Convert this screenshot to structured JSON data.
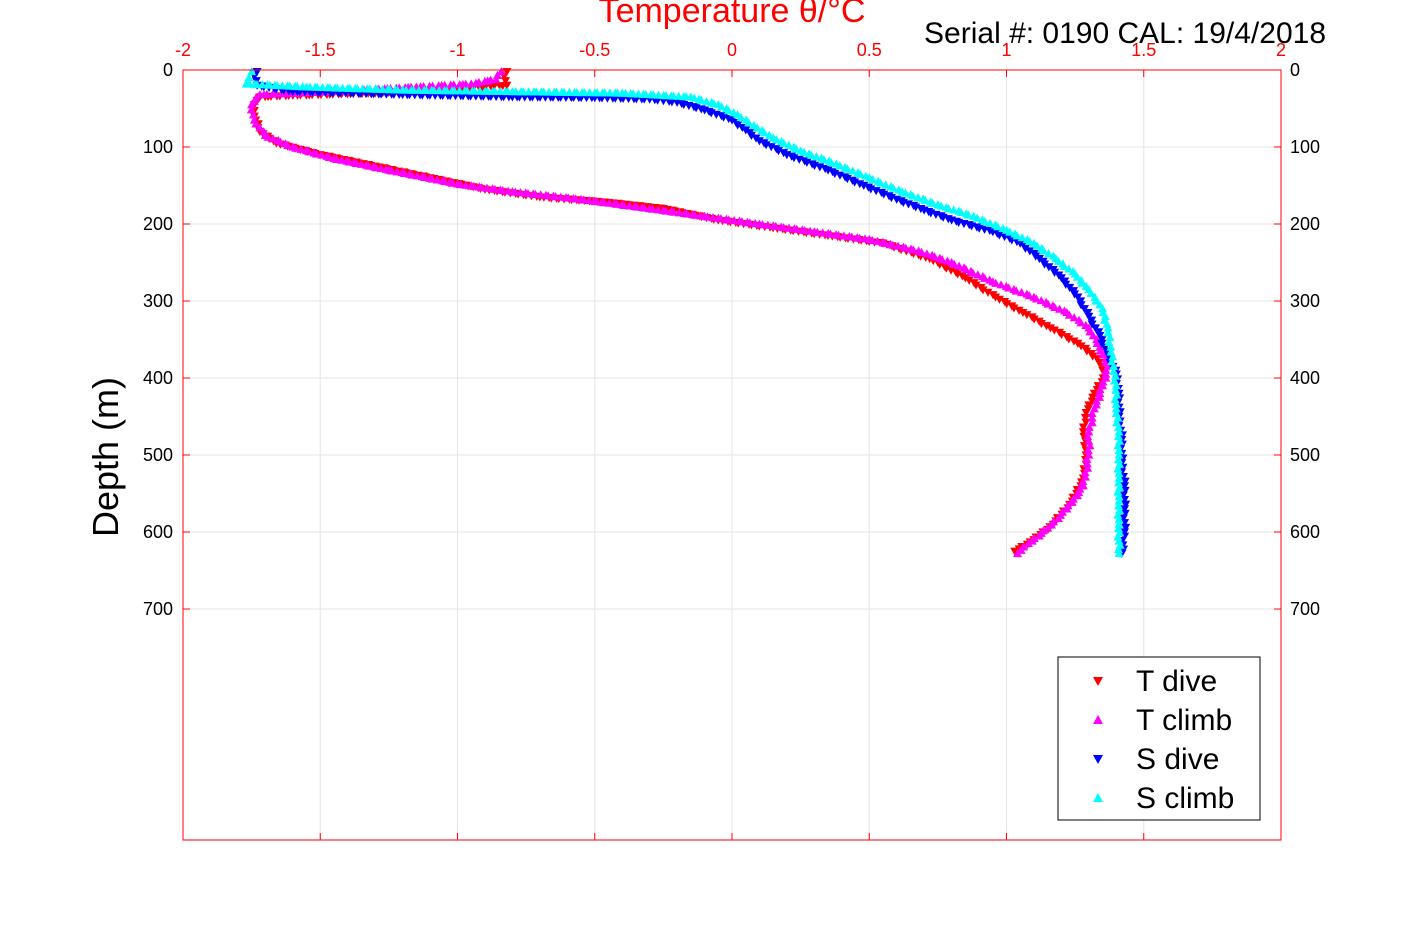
{
  "chart_data": {
    "type": "scatter",
    "title": "Temperature θ/°C",
    "annotation": "Serial #: 0190  CAL: 19/4/2018",
    "ylabel": "Depth (m)",
    "xlim": [
      -2,
      2
    ],
    "ylim": [
      1000,
      0
    ],
    "x_ticks": [
      -2,
      -1.5,
      -1,
      -0.5,
      0,
      0.5,
      1,
      1.5,
      2
    ],
    "x_tick_labels": [
      "-2",
      "-1.5",
      "-1",
      "-0.5",
      "0",
      "0.5",
      "1",
      "1.5",
      "2"
    ],
    "y_ticks": [
      0,
      100,
      200,
      300,
      400,
      500,
      600,
      700
    ],
    "y_tick_labels": [
      "0",
      "100",
      "200",
      "300",
      "400",
      "500",
      "600",
      "700"
    ],
    "grid": true,
    "legend_position": "bottom-right",
    "axis_color": "#ff0000",
    "series": [
      {
        "name": "T dive",
        "marker": "triangle-down",
        "color": "#ff0000",
        "points": [
          [
            -0.82,
            2
          ],
          [
            -0.83,
            8
          ],
          [
            -0.82,
            20
          ],
          [
            -1.0,
            25
          ],
          [
            -1.3,
            30
          ],
          [
            -1.6,
            33
          ],
          [
            -1.72,
            35
          ],
          [
            -1.74,
            45
          ],
          [
            -1.74,
            60
          ],
          [
            -1.72,
            80
          ],
          [
            -1.66,
            95
          ],
          [
            -1.5,
            110
          ],
          [
            -1.3,
            125
          ],
          [
            -1.1,
            140
          ],
          [
            -0.9,
            155
          ],
          [
            -0.7,
            165
          ],
          [
            -0.45,
            172
          ],
          [
            -0.25,
            180
          ],
          [
            -0.05,
            195
          ],
          [
            0.15,
            205
          ],
          [
            0.35,
            215
          ],
          [
            0.55,
            225
          ],
          [
            0.72,
            245
          ],
          [
            0.85,
            270
          ],
          [
            0.96,
            295
          ],
          [
            1.06,
            315
          ],
          [
            1.16,
            335
          ],
          [
            1.26,
            355
          ],
          [
            1.33,
            375
          ],
          [
            1.36,
            395
          ],
          [
            1.32,
            420
          ],
          [
            1.29,
            445
          ],
          [
            1.28,
            470
          ],
          [
            1.29,
            500
          ],
          [
            1.28,
            530
          ],
          [
            1.24,
            560
          ],
          [
            1.17,
            590
          ],
          [
            1.1,
            610
          ],
          [
            1.03,
            625
          ]
        ]
      },
      {
        "name": "T climb",
        "marker": "triangle-up",
        "color": "#ff00ff",
        "points": [
          [
            -0.84,
            2
          ],
          [
            -0.86,
            12
          ],
          [
            -0.95,
            18
          ],
          [
            -1.15,
            22
          ],
          [
            -1.45,
            28
          ],
          [
            -1.72,
            32
          ],
          [
            -1.75,
            45
          ],
          [
            -1.74,
            65
          ],
          [
            -1.7,
            85
          ],
          [
            -1.6,
            100
          ],
          [
            -1.45,
            115
          ],
          [
            -1.25,
            130
          ],
          [
            -1.0,
            148
          ],
          [
            -0.8,
            158
          ],
          [
            -0.55,
            168
          ],
          [
            -0.3,
            180
          ],
          [
            -0.1,
            190
          ],
          [
            0.1,
            200
          ],
          [
            0.3,
            210
          ],
          [
            0.5,
            220
          ],
          [
            0.68,
            235
          ],
          [
            0.8,
            250
          ],
          [
            0.95,
            275
          ],
          [
            1.1,
            295
          ],
          [
            1.22,
            315
          ],
          [
            1.3,
            335
          ],
          [
            1.34,
            360
          ],
          [
            1.37,
            385
          ],
          [
            1.35,
            410
          ],
          [
            1.32,
            440
          ],
          [
            1.3,
            470
          ],
          [
            1.3,
            500
          ],
          [
            1.28,
            540
          ],
          [
            1.22,
            570
          ],
          [
            1.15,
            595
          ],
          [
            1.08,
            615
          ],
          [
            1.04,
            628
          ]
        ]
      },
      {
        "name": "S dive",
        "marker": "triangle-down",
        "color": "#0000ff",
        "points": [
          [
            -1.73,
            2
          ],
          [
            -1.74,
            8
          ],
          [
            -1.73,
            20
          ],
          [
            -1.6,
            28
          ],
          [
            -1.2,
            32
          ],
          [
            -0.8,
            35
          ],
          [
            -0.5,
            36
          ],
          [
            -0.3,
            38
          ],
          [
            -0.2,
            42
          ],
          [
            -0.1,
            52
          ],
          [
            0.0,
            65
          ],
          [
            0.05,
            78
          ],
          [
            0.1,
            92
          ],
          [
            0.2,
            110
          ],
          [
            0.35,
            130
          ],
          [
            0.48,
            150
          ],
          [
            0.6,
            168
          ],
          [
            0.7,
            182
          ],
          [
            0.8,
            195
          ],
          [
            0.95,
            210
          ],
          [
            1.05,
            225
          ],
          [
            1.12,
            245
          ],
          [
            1.2,
            270
          ],
          [
            1.26,
            295
          ],
          [
            1.3,
            320
          ],
          [
            1.34,
            345
          ],
          [
            1.37,
            370
          ],
          [
            1.4,
            395
          ],
          [
            1.41,
            420
          ],
          [
            1.41,
            450
          ],
          [
            1.42,
            480
          ],
          [
            1.42,
            510
          ],
          [
            1.43,
            540
          ],
          [
            1.43,
            570
          ],
          [
            1.43,
            600
          ],
          [
            1.42,
            628
          ]
        ]
      },
      {
        "name": "S climb",
        "marker": "triangle-up",
        "color": "#00ffff",
        "points": [
          [
            -1.75,
            2
          ],
          [
            -1.76,
            10
          ],
          [
            -1.77,
            18
          ],
          [
            -1.55,
            22
          ],
          [
            -1.2,
            26
          ],
          [
            -0.8,
            28
          ],
          [
            -0.4,
            30
          ],
          [
            -0.15,
            35
          ],
          [
            -0.05,
            45
          ],
          [
            0.02,
            58
          ],
          [
            0.08,
            72
          ],
          [
            0.15,
            88
          ],
          [
            0.25,
            105
          ],
          [
            0.38,
            122
          ],
          [
            0.5,
            140
          ],
          [
            0.62,
            158
          ],
          [
            0.75,
            175
          ],
          [
            0.88,
            190
          ],
          [
            1.0,
            208
          ],
          [
            1.1,
            225
          ],
          [
            1.18,
            245
          ],
          [
            1.25,
            265
          ],
          [
            1.3,
            285
          ],
          [
            1.35,
            310
          ],
          [
            1.37,
            335
          ],
          [
            1.38,
            360
          ],
          [
            1.39,
            385
          ],
          [
            1.4,
            410
          ],
          [
            1.4,
            440
          ],
          [
            1.41,
            470
          ],
          [
            1.41,
            500
          ],
          [
            1.41,
            530
          ],
          [
            1.41,
            560
          ],
          [
            1.41,
            590
          ],
          [
            1.41,
            628
          ]
        ]
      }
    ]
  }
}
